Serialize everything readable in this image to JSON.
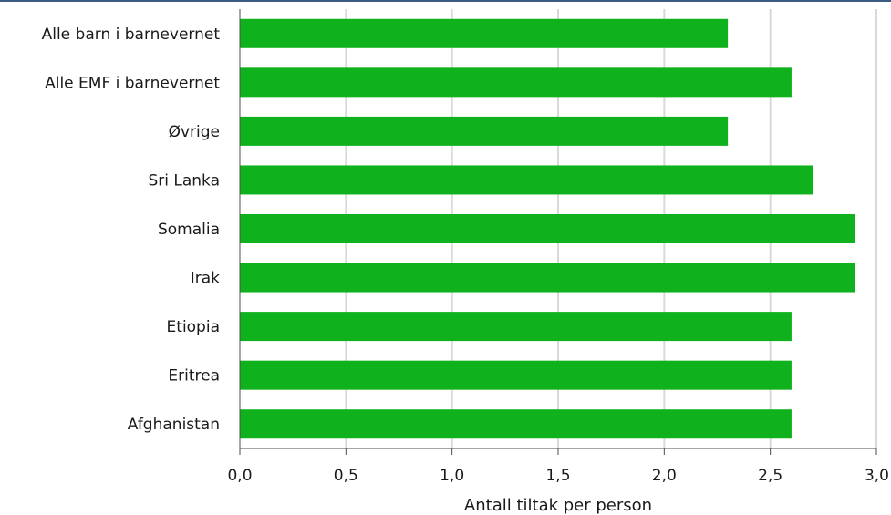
{
  "colors": {
    "bar": "#0fb21d",
    "grid": "#d9d9d9",
    "axis": "#4d4d4d",
    "top_rule": "#3a5a84"
  },
  "chart_data": {
    "type": "bar",
    "orientation": "horizontal",
    "categories": [
      "Alle barn i barnevernet",
      "Alle EMF i barnevernet",
      "Øvrige",
      "Sri Lanka",
      "Somalia",
      "Irak",
      "Etiopia",
      "Eritrea",
      "Afghanistan"
    ],
    "values": [
      2.3,
      2.6,
      2.3,
      2.7,
      2.9,
      2.9,
      2.6,
      2.6,
      2.6
    ],
    "title": "",
    "xlabel": "Antall tiltak per person",
    "ylabel": "",
    "xlim": [
      0,
      3
    ],
    "x_ticks": [
      0,
      0.5,
      1,
      1.5,
      2,
      2.5,
      3
    ],
    "x_tick_labels": [
      "0,0",
      "0,5",
      "1,0",
      "1,5",
      "2,0",
      "2,5",
      "3,0"
    ],
    "grid": "vertical",
    "legend": "none"
  }
}
